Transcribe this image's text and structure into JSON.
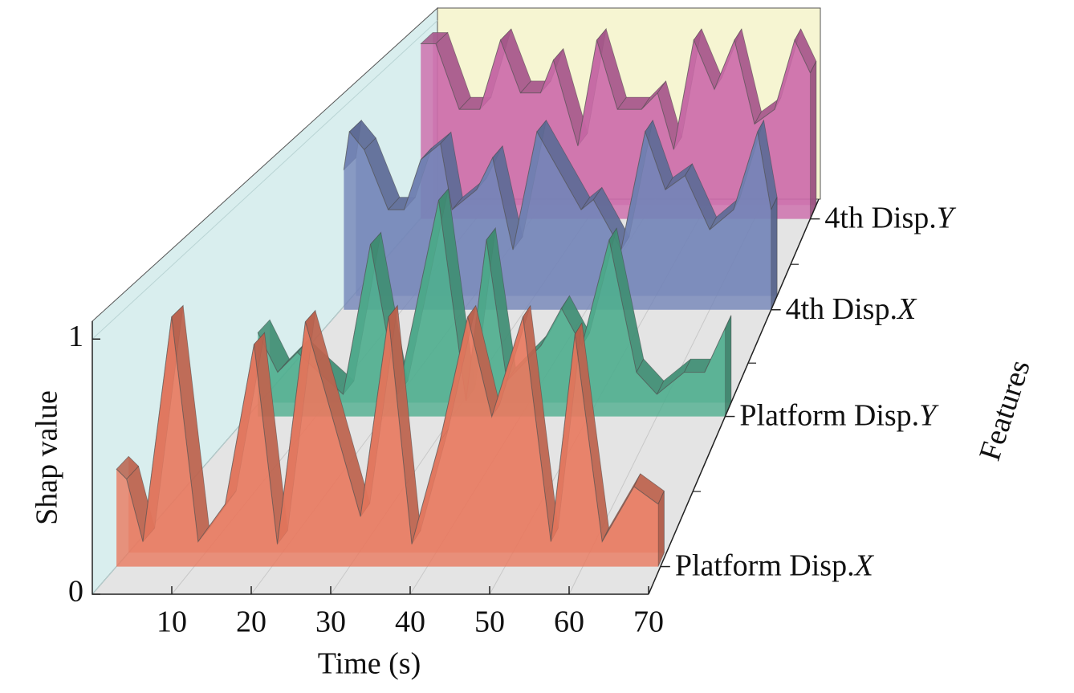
{
  "chart_data": {
    "type": "waterfall3d",
    "xlabel": "Time (s)",
    "ylabel": "Shap value",
    "zlabel": "Features",
    "xlim": [
      0,
      70
    ],
    "xticks": [
      10,
      20,
      30,
      40,
      50,
      60,
      70
    ],
    "ylim": [
      0,
      1.07
    ],
    "yticks": [
      0,
      1
    ],
    "series": [
      {
        "name": "Platform Disp.X",
        "color": "#e8795f",
        "x": [
          0,
          1.3,
          3.4,
          7.1,
          10.5,
          14,
          17.7,
          20.7,
          24.3,
          31.4,
          35,
          38,
          41.6,
          45.2,
          48.3,
          52.3,
          55.9,
          59,
          62.5,
          66.6,
          69.7
        ],
        "values": [
          0.39,
          0.35,
          0.1,
          1.0,
          0.1,
          0.25,
          0.89,
          0.09,
          0.98,
          0.2,
          1.0,
          0.09,
          0.5,
          1.0,
          0.6,
          1.0,
          0.1,
          0.93,
          0.1,
          0.32,
          0.25
        ]
      },
      {
        "name": "Platform Disp.Y",
        "color": "#4fae8e",
        "x": [
          1.5,
          4.4,
          7.3,
          9.7,
          14,
          18,
          22,
          28,
          32,
          35,
          38,
          43,
          46,
          49,
          53,
          57,
          60,
          64,
          67,
          70
        ],
        "values": [
          0.38,
          0.2,
          0.29,
          0.22,
          0.1,
          0.78,
          0.1,
          0.98,
          0.07,
          0.8,
          0.16,
          0.32,
          0.49,
          0.32,
          0.8,
          0.2,
          0.1,
          0.2,
          0.2,
          0.4
        ]
      },
      {
        "name": "4th Disp.X",
        "color": "#7384b8",
        "x": [
          0.5,
          1.4,
          3.8,
          7.7,
          10.3,
          13,
          16.2,
          18.1,
          22.1,
          24.7,
          28,
          31.9,
          39.1,
          41.1,
          45.6,
          49.5,
          52.8,
          56,
          60,
          63.9,
          67.8,
          70
        ],
        "values": [
          0.7,
          0.89,
          0.8,
          0.5,
          0.5,
          0.75,
          0.83,
          0.5,
          0.6,
          0.76,
          0.3,
          0.89,
          0.5,
          0.55,
          0.3,
          0.89,
          0.6,
          0.67,
          0.4,
          0.5,
          0.89,
          0.5
        ]
      },
      {
        "name": "4th Disp.Y",
        "color": "#cc6aaa",
        "x": [
          0.1,
          2.8,
          7,
          10.7,
          14.4,
          18,
          21.6,
          23.9,
          28.3,
          31.7,
          35.4,
          39.7,
          42.6,
          45.5,
          49.1,
          52.8,
          56.4,
          60,
          63.6,
          67.2,
          70
        ],
        "values": [
          0.96,
          0.96,
          0.6,
          0.6,
          0.98,
          0.69,
          0.69,
          0.87,
          0.4,
          0.98,
          0.6,
          0.6,
          0.69,
          0.38,
          0.98,
          0.71,
          0.98,
          0.52,
          0.6,
          0.98,
          0.8
        ]
      }
    ]
  }
}
